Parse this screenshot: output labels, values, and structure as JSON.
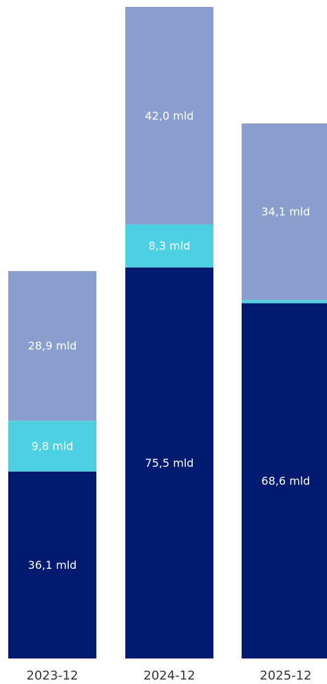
{
  "chart_data": {
    "type": "bar",
    "stacked": true,
    "categories": [
      "2023-12",
      "2024-12",
      "2025-12"
    ],
    "series": [
      {
        "values": [
          36.1,
          75.5,
          68.6
        ],
        "labels": [
          "36,1 mld",
          "75,5 mld",
          "68,6 mld"
        ],
        "color": "#001a70"
      },
      {
        "values": [
          9.8,
          8.3,
          0.6
        ],
        "labels": [
          "9,8 mld",
          "8,3 mld",
          ""
        ],
        "color": "#4dd0e1"
      },
      {
        "values": [
          28.9,
          42.0,
          34.1
        ],
        "labels": [
          "28,9 mld",
          "42,0 mld",
          "34,1 mld"
        ],
        "color": "#8a9ecd"
      }
    ],
    "title": "",
    "xlabel": "",
    "ylabel": "",
    "ylim": [
      0,
      125.8
    ],
    "grid": false,
    "legend": "none"
  }
}
